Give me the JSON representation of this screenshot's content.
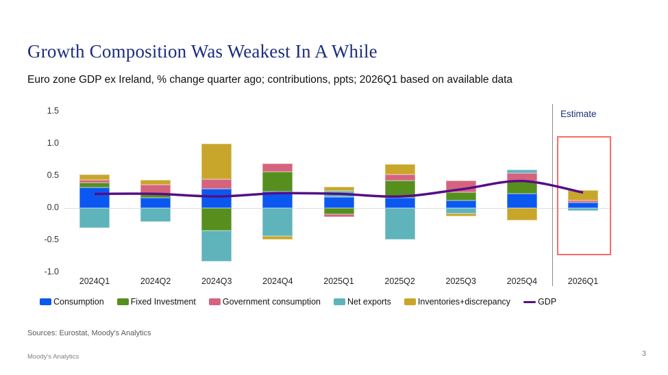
{
  "slide": {
    "title": "Growth Composition Was Weakest In A While",
    "subtitle": "Euro zone GDP ex Ireland, % change quarter ago; contributions, ppts; 2026Q1 based on available data",
    "sources": "Sources: Eurostat, Moody's Analytics",
    "footer_brand": "Moody's Analytics",
    "page_number": "3"
  },
  "chart_data": {
    "type": "bar",
    "stacked": true,
    "categories": [
      "2024Q1",
      "2024Q2",
      "2024Q3",
      "2024Q4",
      "2025Q1",
      "2025Q2",
      "2025Q3",
      "2025Q4",
      "2026Q1"
    ],
    "series": [
      {
        "name": "Consumption",
        "color": "#0b58f0",
        "values": [
          0.32,
          0.16,
          0.3,
          0.26,
          0.17,
          0.16,
          0.12,
          0.22,
          0.08
        ]
      },
      {
        "name": "Fixed Investment",
        "color": "#578f1e",
        "values": [
          0.07,
          0.05,
          -0.35,
          0.3,
          -0.1,
          0.27,
          0.12,
          0.2,
          0.0
        ]
      },
      {
        "name": "Government consumption",
        "color": "#d5637e",
        "values": [
          0.05,
          0.15,
          0.15,
          0.13,
          -0.04,
          0.09,
          0.19,
          0.12,
          0.04
        ]
      },
      {
        "name": "Net exports",
        "color": "#5fb3bb",
        "values": [
          -0.31,
          -0.21,
          -0.48,
          -0.44,
          0.1,
          -0.49,
          -0.09,
          0.06,
          -0.04
        ]
      },
      {
        "name": "Inventories+discrepancy",
        "color": "#c8a62b",
        "values": [
          0.08,
          0.08,
          0.55,
          -0.05,
          0.06,
          0.16,
          -0.04,
          -0.19,
          0.16
        ]
      }
    ],
    "line_series": {
      "name": "GDP",
      "color": "#540e88",
      "values": [
        0.22,
        0.22,
        0.18,
        0.23,
        0.22,
        0.18,
        0.29,
        0.42,
        0.24
      ]
    },
    "y_ticks": [
      "1.5",
      "1.0",
      "0.5",
      "0.0",
      "-0.5",
      "-1.0"
    ],
    "ylim": [
      -1.0,
      1.5
    ],
    "grid": "zero-line-only",
    "legend_position": "bottom",
    "annotations": {
      "estimate_label": "Estimate",
      "estimate_label_color": "#1f3079",
      "estimate_box_color": "#fa6b65",
      "estimate_category": "2026Q1"
    }
  }
}
